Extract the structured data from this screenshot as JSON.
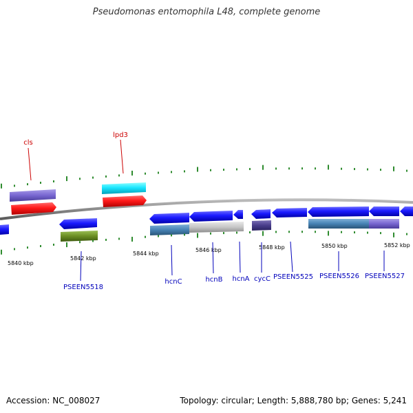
{
  "title": "Pseudomonas entomophila L48, complete genome",
  "footer": {
    "accession": "Accession: NC_008027",
    "topology": "Topology: circular; Length: 5,888,780 bp; Genes: 5,241"
  },
  "colors": {
    "backbone": "#888888",
    "tick_major": "#2e8b2e",
    "tick_minor": "#2e8b2e",
    "label_top": "#cc0000",
    "label_bottom": "#0000bb"
  },
  "kbp_labels": [
    "5840 kbp",
    "5842 kbp",
    "5844 kbp",
    "5846 kbp",
    "5848 kbp",
    "5850 kbp",
    "5852 kbp"
  ],
  "top_labels": [
    {
      "id": "cls",
      "text": "cls"
    },
    {
      "id": "lpd3",
      "text": "lpd3"
    }
  ],
  "bottom_labels": [
    {
      "id": "pseen5518",
      "text": "PSEEN5518"
    },
    {
      "id": "hcnc",
      "text": "hcnC"
    },
    {
      "id": "hcnb",
      "text": "hcnB"
    },
    {
      "id": "hcna",
      "text": "hcnA"
    },
    {
      "id": "cycc",
      "text": "cycC"
    },
    {
      "id": "pseen5525",
      "text": "PSEEN5525"
    },
    {
      "id": "pseen5526",
      "text": "PSEEN5526"
    },
    {
      "id": "pseen5527",
      "text": "PSEEN5527"
    }
  ]
}
